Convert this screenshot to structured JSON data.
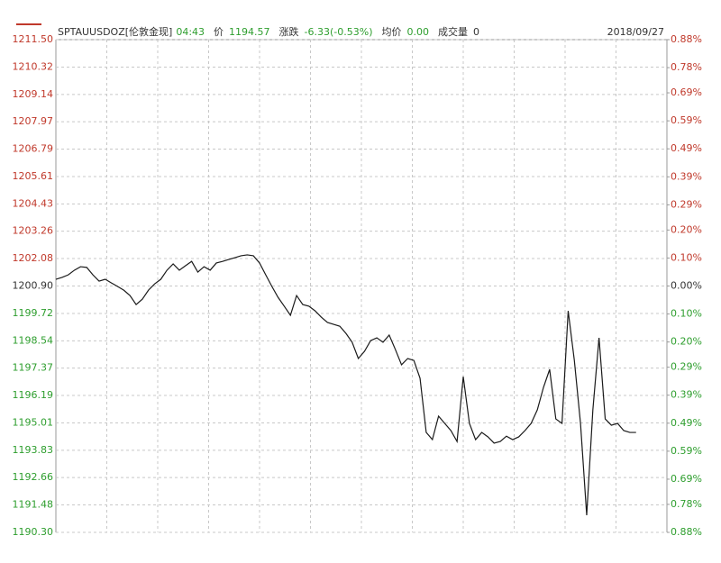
{
  "chart_data": {
    "type": "line",
    "title": "SPTAUUSDOZ[伦敦金现]",
    "time": "04:43",
    "time_color": "#2e9e2e",
    "fields": [
      {
        "label": "价",
        "value": 1194.57,
        "color": "#2e9e2e"
      },
      {
        "label": "涨跌",
        "value": "-6.33(-0.53%)",
        "color": "#2e9e2e"
      },
      {
        "label": "均价",
        "value": "0.00",
        "color": "#2e9e2e"
      },
      {
        "label": "成交量",
        "value": 0,
        "color": "#333333"
      }
    ],
    "date": "2018/09/27",
    "categories": [
      null,
      null,
      null,
      null,
      null,
      null,
      null,
      null,
      null,
      null,
      null,
      null,
      null,
      null,
      null,
      null,
      null,
      null,
      null,
      null,
      null,
      null,
      null,
      null,
      null,
      null,
      null,
      null,
      null,
      null,
      null,
      null,
      null,
      null,
      null,
      null,
      null,
      null,
      null,
      null,
      null,
      null,
      null,
      null,
      null,
      null,
      null,
      null,
      null,
      null,
      null,
      null,
      null,
      null,
      null,
      null,
      null,
      null,
      null,
      null,
      null,
      null,
      null,
      null,
      null,
      null,
      null,
      null,
      null,
      null,
      null,
      null,
      null,
      null,
      null,
      null,
      null,
      null,
      null,
      null,
      null,
      null,
      null,
      null,
      null,
      null,
      null,
      null,
      null,
      null,
      null,
      null,
      null,
      null,
      null,
      null,
      null,
      null,
      null,
      null
    ],
    "series": [
      {
        "name": "SPTAUUSDOZ",
        "color": "#1a1a1a",
        "values": [
          1201.19,
          1201.27,
          1201.38,
          1201.58,
          1201.73,
          1201.7,
          1201.38,
          1201.11,
          1201.19,
          1201.03,
          1200.88,
          1200.72,
          1200.49,
          1200.1,
          1200.33,
          1200.72,
          1200.99,
          1201.19,
          1201.58,
          1201.85,
          1201.58,
          1201.77,
          1201.96,
          1201.5,
          1201.73,
          1201.58,
          1201.89,
          1201.96,
          1202.04,
          1202.12,
          1202.2,
          1202.24,
          1202.2,
          1201.89,
          1201.38,
          1200.88,
          1200.41,
          1200.03,
          1199.64,
          1200.49,
          1200.1,
          1200.03,
          1199.83,
          1199.56,
          1199.33,
          1199.25,
          1199.17,
          1198.86,
          1198.48,
          1197.78,
          1198.09,
          1198.55,
          1198.67,
          1198.48,
          1198.79,
          1198.17,
          1197.51,
          1197.78,
          1197.7,
          1196.93,
          1194.6,
          1194.29,
          1195.3,
          1194.99,
          1194.68,
          1194.21,
          1197.0,
          1194.99,
          1194.29,
          1194.6,
          1194.41,
          1194.14,
          1194.21,
          1194.44,
          1194.29,
          1194.41,
          1194.68,
          1194.99,
          1195.57,
          1196.54,
          1197.31,
          1195.18,
          1194.99,
          1199.83,
          1197.7,
          1194.99,
          1191.04,
          1195.57,
          1198.67,
          1195.18,
          1194.91,
          1194.99,
          1194.68,
          1194.6,
          1194.6,
          null,
          null,
          null,
          null,
          null
        ]
      }
    ],
    "ylim": [
      1190.3,
      1211.5
    ],
    "yticks": [
      {
        "value": 1211.5,
        "label": "1211.50"
      },
      1210.32,
      1209.14,
      1207.97,
      1206.79,
      1205.61,
      1204.43,
      1203.26,
      1202.08,
      {
        "value": 1200.9,
        "label": "1200.90"
      },
      1199.72,
      1198.54,
      1197.37,
      1196.19,
      1195.01,
      1193.83,
      1192.66,
      1191.48,
      {
        "value": 1190.3,
        "label": "1190.30"
      }
    ],
    "y2lim": [
      -0.88,
      0.88
    ],
    "y2ticks": [
      {
        "value": 0.88,
        "label": "0.88%"
      },
      {
        "value": 0.78,
        "label": "0.78%"
      },
      {
        "value": 0.69,
        "label": "0.69%"
      },
      {
        "value": 0.59,
        "label": "0.59%"
      },
      {
        "value": 0.49,
        "label": "0.49%"
      },
      {
        "value": 0.39,
        "label": "0.39%"
      },
      {
        "value": 0.29,
        "label": "0.29%"
      },
      {
        "value": 0.2,
        "label": "0.20%"
      },
      {
        "value": 0.1,
        "label": "0.10%"
      },
      {
        "value": 0,
        "label": "0.00%"
      },
      {
        "value": -0.1,
        "label": "0.10%"
      },
      {
        "value": -0.2,
        "label": "0.20%"
      },
      {
        "value": -0.29,
        "label": "0.29%"
      },
      {
        "value": -0.39,
        "label": "0.39%"
      },
      {
        "value": -0.49,
        "label": "0.49%"
      },
      {
        "value": -0.59,
        "label": "0.59%"
      },
      {
        "value": -0.69,
        "label": "0.69%"
      },
      {
        "value": -0.78,
        "label": "0.78%"
      },
      {
        "value": -0.88,
        "label": "0.88%"
      }
    ],
    "grid": true,
    "vertical_grid_count": 12,
    "up_color": "#c0392b",
    "down_color": "#2e9e2e",
    "flat_color": "#333333"
  }
}
